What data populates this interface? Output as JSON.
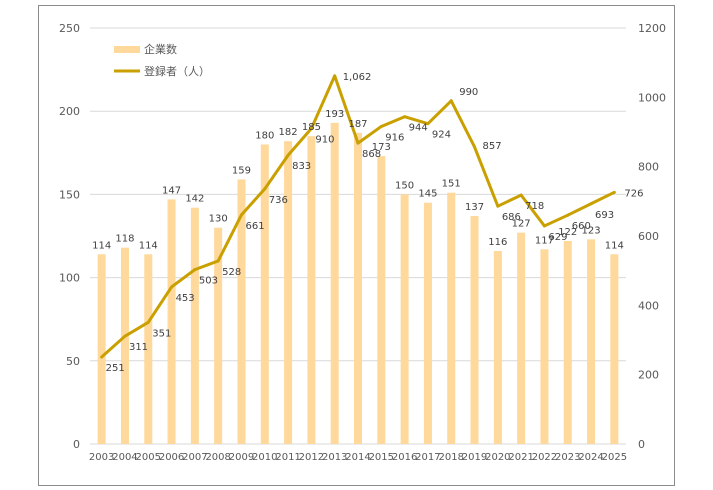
{
  "chart_data": {
    "type": "bar+line",
    "categories": [
      "2003",
      "2004",
      "2005",
      "2006",
      "2007",
      "2008",
      "2009",
      "2010",
      "2011",
      "2012",
      "2013",
      "2014",
      "2015",
      "2016",
      "2017",
      "2018",
      "2019",
      "2020",
      "2021",
      "2022",
      "2023",
      "2024",
      "2025"
    ],
    "series": [
      {
        "name": "企業数",
        "type": "bar",
        "axis": "left",
        "color": "#ffd89b",
        "values": [
          114,
          118,
          114,
          147,
          142,
          130,
          159,
          180,
          182,
          185,
          193,
          187,
          173,
          150,
          145,
          151,
          137,
          116,
          127,
          117,
          122,
          123,
          114
        ],
        "labels": [
          "114",
          "118",
          "114",
          "147",
          "142",
          "130",
          "159",
          "180",
          "182",
          "185",
          "193",
          "187",
          "173",
          "150",
          "145",
          "151",
          "137",
          "116",
          "127",
          "117",
          "122",
          "123",
          "114"
        ]
      },
      {
        "name": "登録者（人）",
        "type": "line",
        "axis": "right",
        "color": "#c9a000",
        "values": [
          251,
          311,
          351,
          453,
          503,
          528,
          661,
          736,
          833,
          910,
          1062,
          868,
          916,
          944,
          924,
          990,
          857,
          686,
          718,
          629,
          660,
          693,
          726
        ],
        "labels": [
          "251",
          "311",
          "351",
          "453",
          "503",
          "528",
          "661",
          "736",
          "833",
          "910",
          "1,062",
          "868",
          "916",
          "944",
          "924",
          "990",
          "857",
          "686",
          "718",
          "629",
          "660",
          "693",
          "726"
        ]
      }
    ],
    "y_left": {
      "min": 0,
      "max": 250,
      "ticks": [
        "0",
        "50",
        "100",
        "150",
        "200",
        "250"
      ]
    },
    "y_right": {
      "min": 0,
      "max": 1200,
      "ticks": [
        "0",
        "200",
        "400",
        "600",
        "800",
        "1000",
        "1200"
      ]
    },
    "grid": true,
    "legend": "top-left"
  }
}
